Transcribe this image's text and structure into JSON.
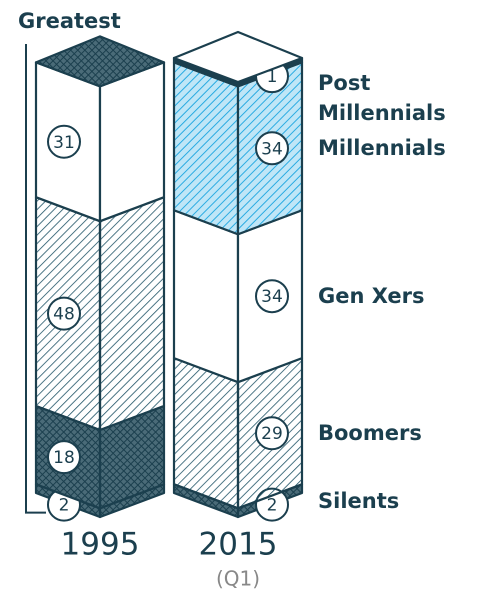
{
  "chart_data": {
    "type": "stacked-column",
    "categories": [
      "1995",
      "2015"
    ],
    "category_notes": [
      null,
      "(Q1)"
    ],
    "series": [
      {
        "name": "Greatest",
        "color": "#1b3f4e",
        "hatch": "cross",
        "values": [
          2,
          null
        ]
      },
      {
        "name": "Silents",
        "color": "#1b3f4e",
        "hatch": "cross",
        "values": [
          18,
          2
        ]
      },
      {
        "name": "Boomers",
        "color": "#1f5366",
        "hatch": "diagonal",
        "values": [
          48,
          29
        ]
      },
      {
        "name": "Gen Xers",
        "color": "#1f5366",
        "hatch": "none",
        "values": [
          31,
          34
        ]
      },
      {
        "name": "Millennials",
        "color": "#29abe2",
        "hatch": "diagonal",
        "values": [
          null,
          34
        ]
      },
      {
        "name": "Post Millennials",
        "color": "#1b3f4e",
        "hatch": "solid",
        "values": [
          null,
          1
        ]
      }
    ]
  }
}
